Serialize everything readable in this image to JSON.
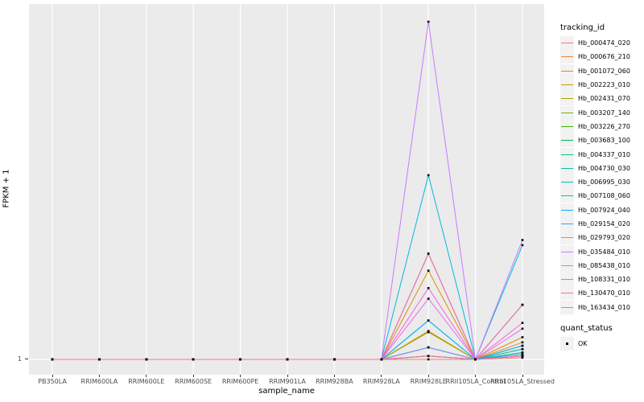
{
  "chart": {
    "y_axis_title": "FPKM + 1",
    "x_axis_title": "sample_name",
    "y_ticks": [
      "1"
    ]
  },
  "legend": {
    "title": "tracking_id"
  },
  "legend2": {
    "title": "quant_status",
    "entries": [
      {
        "label": "OK",
        "marker": "black-square",
        "marker_color": "#000000"
      }
    ]
  },
  "chart_data": {
    "type": "line",
    "title": "",
    "xlabel": "sample_name",
    "ylabel": "FPKM + 1",
    "y_tick_labels": [
      "1"
    ],
    "ylim_note": "Only the y tick '1' is labeled; series values are estimates on a relative scale where baseline = 1 and the tallest peak = 100.",
    "legend_position": "right",
    "grid": "white major gridlines on grey panel; vertical line per category, horizontal line at y=1",
    "point_marker": "small black square at every data point (quant_status = OK)",
    "style": {
      "panel_background": "#EBEBEB",
      "gridline_color": "#FFFFFF",
      "marker_color": "#000000",
      "tick_label_color": "#4D4D4D",
      "legend_key_background": "#F2F2F2"
    },
    "categories": [
      "PB350LA",
      "RRIM600LA",
      "RRIM600LE",
      "RRIM600SE",
      "RRIM600PE",
      "RRIM901LA",
      "RRIM928BA",
      "RRIM928LA",
      "RRIM928LE",
      "RRII105LA_Control",
      "RRII105LA_Stressed"
    ],
    "series": [
      {
        "name": "Hb_000474_020",
        "color": "#F8766D",
        "values": [
          1,
          1,
          1,
          1,
          1,
          1,
          1,
          1,
          1,
          1,
          1.5
        ]
      },
      {
        "name": "Hb_000676_210",
        "color": "#EA8331",
        "values": [
          1,
          1,
          1,
          1,
          1,
          1,
          1,
          1,
          9,
          1,
          6
        ]
      },
      {
        "name": "Hb_001072_060",
        "color": "#D89000",
        "values": [
          1,
          1,
          1,
          1,
          1,
          1,
          1,
          1,
          27,
          1,
          7.5
        ]
      },
      {
        "name": "Hb_002223_010",
        "color": "#C09B00",
        "values": [
          1,
          1,
          1,
          1,
          1,
          1,
          1,
          1,
          9,
          1,
          5
        ]
      },
      {
        "name": "Hb_002431_070",
        "color": "#A3A500",
        "values": [
          1,
          1,
          1,
          1,
          1,
          1,
          1,
          1,
          9.3,
          1,
          4
        ]
      },
      {
        "name": "Hb_003207_140",
        "color": "#7CAE00",
        "values": [
          1,
          1,
          1,
          1,
          1,
          1,
          1,
          1,
          4.5,
          1,
          3
        ]
      },
      {
        "name": "Hb_003226_270",
        "color": "#39B600",
        "values": [
          1,
          1,
          1,
          1,
          1,
          1,
          1,
          1,
          32,
          1,
          17
        ]
      },
      {
        "name": "Hb_003683_100",
        "color": "#00BB4E",
        "values": [
          1,
          1,
          1,
          1,
          1,
          1,
          1,
          1,
          4.5,
          1,
          2
        ]
      },
      {
        "name": "Hb_004337_010",
        "color": "#00BF7D",
        "values": [
          1,
          1,
          1,
          1,
          1,
          1,
          1,
          1,
          2,
          1,
          2
        ]
      },
      {
        "name": "Hb_004730_030",
        "color": "#00C1A3",
        "values": [
          1,
          1,
          1,
          1,
          1,
          1,
          1,
          1,
          2,
          1,
          3
        ]
      },
      {
        "name": "Hb_006995_030",
        "color": "#00BFC4",
        "values": [
          1,
          1,
          1,
          1,
          1,
          1,
          1,
          1,
          12.4,
          1,
          4
        ]
      },
      {
        "name": "Hb_007108_060",
        "color": "#00BAE0",
        "values": [
          1,
          1,
          1,
          1,
          1,
          1,
          1,
          1,
          55,
          1,
          34.5
        ]
      },
      {
        "name": "Hb_007924_040",
        "color": "#00B0F6",
        "values": [
          1,
          1,
          1,
          1,
          1,
          1,
          1,
          1,
          12.4,
          1,
          5
        ]
      },
      {
        "name": "Hb_029154_020",
        "color": "#35A2FF",
        "values": [
          1,
          1,
          1,
          1,
          1,
          1,
          1,
          1,
          4.5,
          1,
          2.5
        ]
      },
      {
        "name": "Hb_029793_020",
        "color": "#9590FF",
        "values": [
          1,
          1,
          1,
          1,
          1,
          1,
          1,
          1,
          4.5,
          1,
          2
        ]
      },
      {
        "name": "Hb_035484_010",
        "color": "#C77CFF",
        "values": [
          1,
          1,
          1,
          1,
          1,
          1,
          1,
          1,
          100,
          1,
          36
        ]
      },
      {
        "name": "Hb_085438_010",
        "color": "#E76BF3",
        "values": [
          1,
          1,
          1,
          1,
          1,
          1,
          1,
          1,
          18.8,
          1,
          10
        ]
      },
      {
        "name": "Hb_108331_010",
        "color": "#FA62DB",
        "values": [
          1,
          1,
          1,
          1,
          1,
          1,
          1,
          1,
          21.9,
          1,
          11.7
        ]
      },
      {
        "name": "Hb_130470_010",
        "color": "#FF62BC",
        "values": [
          1,
          1,
          1,
          1,
          1,
          1,
          1,
          1,
          32,
          1,
          17
        ]
      },
      {
        "name": "Hb_163434_010",
        "color": "#FF6A98",
        "values": [
          1,
          1,
          1,
          1,
          1,
          1,
          1,
          1,
          2,
          1,
          2
        ]
      }
    ]
  }
}
